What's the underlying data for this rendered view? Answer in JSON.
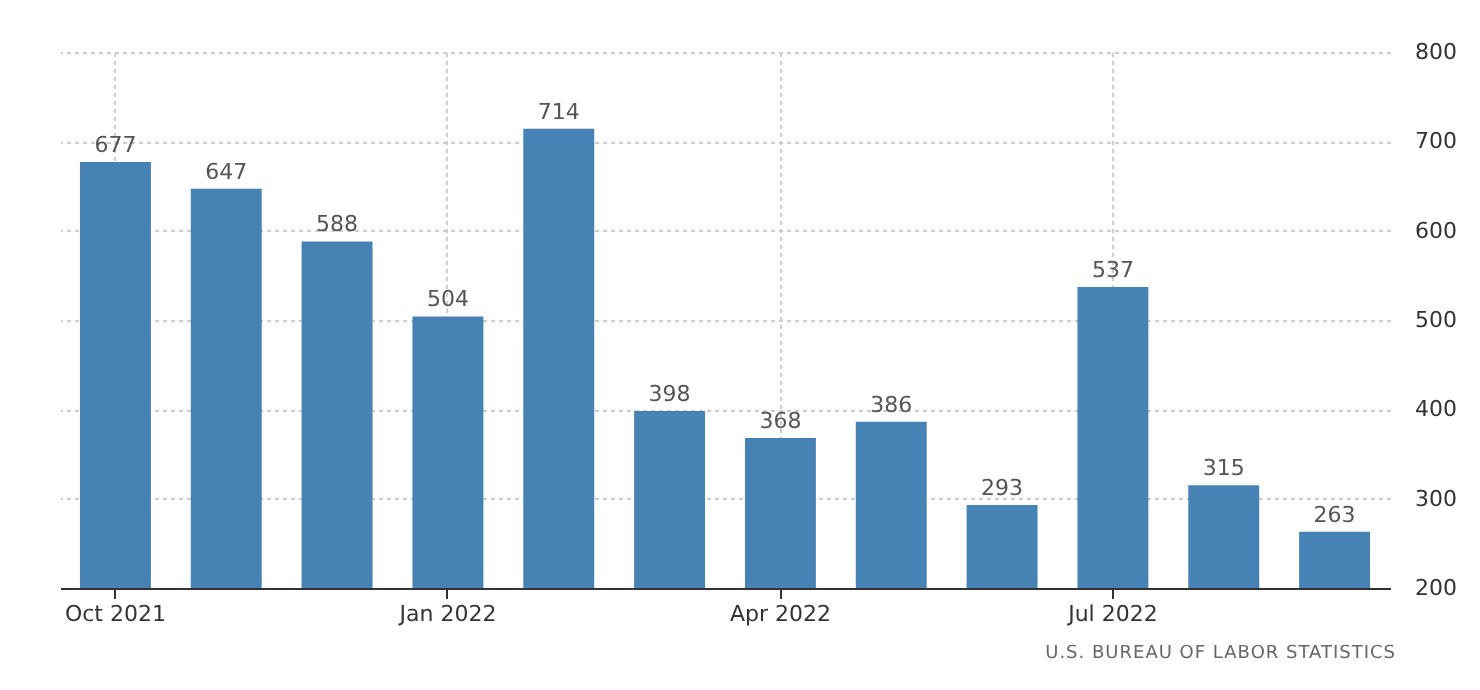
{
  "chart_data": {
    "type": "bar",
    "categories": [
      "Oct 2021",
      null,
      null,
      "Jan 2022",
      null,
      null,
      "Apr 2022",
      null,
      null,
      "Jul 2022",
      null,
      null
    ],
    "values": [
      677,
      647,
      588,
      504,
      714,
      398,
      368,
      386,
      293,
      537,
      315,
      263
    ],
    "color": "#4682b4",
    "ylim": [
      200,
      800
    ],
    "yticks": [
      200,
      300,
      400,
      500,
      600,
      700,
      800
    ],
    "grid": true,
    "data_labels": true,
    "annotations": [
      "U.S. BUREAU OF LABOR STATISTICS"
    ]
  }
}
